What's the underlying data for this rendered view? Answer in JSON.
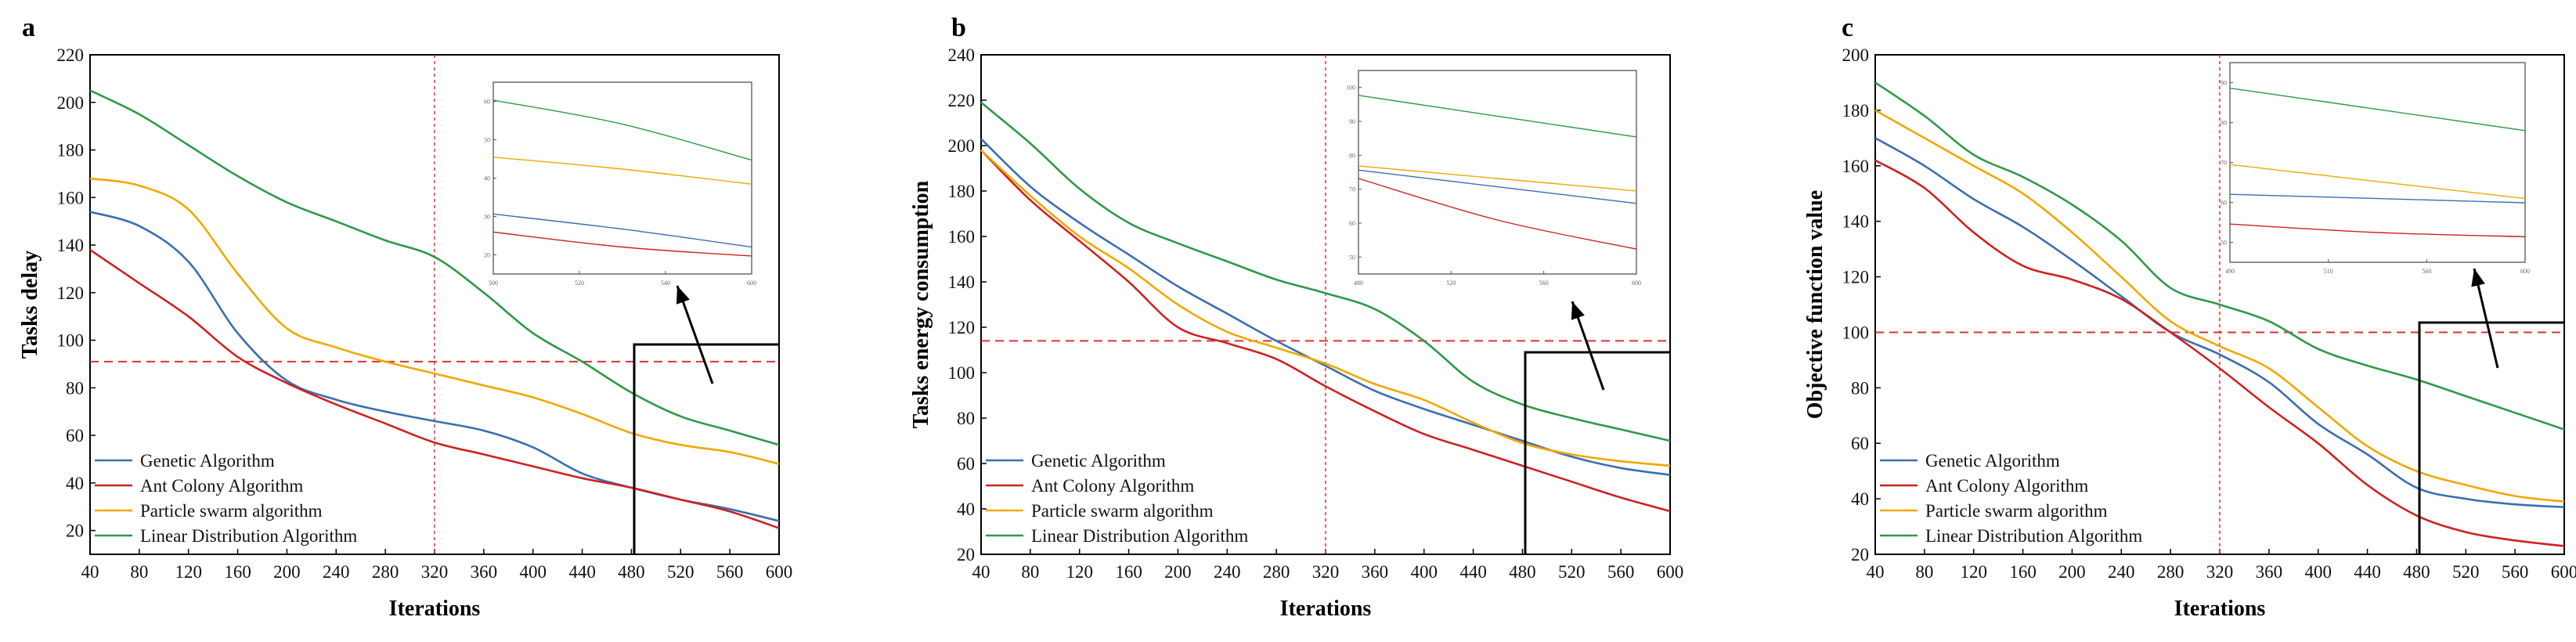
{
  "chart_data": [
    {
      "type": "line",
      "panel": "a",
      "xlabel": "Iterations",
      "ylabel": "Tasks delay",
      "xlim": [
        40,
        600
      ],
      "ylim": [
        10,
        220
      ],
      "xticks": [
        40,
        80,
        120,
        160,
        200,
        240,
        280,
        320,
        360,
        400,
        440,
        480,
        520,
        560,
        600
      ],
      "yticks": [
        20,
        40,
        60,
        80,
        100,
        120,
        140,
        160,
        180,
        200,
        220
      ],
      "x": [
        40,
        80,
        120,
        160,
        200,
        240,
        280,
        320,
        360,
        400,
        440,
        480,
        520,
        560,
        600
      ],
      "series": [
        {
          "name": "Genetic Algorithm",
          "color": "#3a6fb0",
          "values": [
            154,
            148,
            133,
            103,
            83,
            75,
            70,
            66,
            62,
            55,
            44,
            38,
            33,
            29,
            24
          ]
        },
        {
          "name": "Ant Colony Algorithm",
          "color": "#cc2222",
          "values": [
            138,
            124,
            110,
            93,
            82,
            73,
            65,
            57,
            52,
            47,
            42,
            38,
            33,
            28,
            21
          ]
        },
        {
          "name": "Particle swarm algorithm",
          "color": "#f0a800",
          "values": [
            168,
            165,
            155,
            128,
            105,
            97,
            91,
            86,
            81,
            76,
            69,
            61,
            56,
            53,
            48
          ]
        },
        {
          "name": "Linear Distribution Algorithm",
          "color": "#2e9a48",
          "values": [
            205,
            195,
            182,
            169,
            158,
            150,
            142,
            135,
            120,
            103,
            91,
            78,
            68,
            62,
            56
          ]
        }
      ],
      "hline": 91,
      "vline": 320,
      "inset": {
        "xticks": [
          "500",
          "520",
          "540",
          "600"
        ],
        "yticks": [
          "20",
          "30",
          "40",
          "50",
          "60"
        ],
        "series": [
          {
            "color": "#3a6fb0",
            "values": [
              40,
              35,
              29
            ]
          },
          {
            "color": "#cc2222",
            "values": [
              34,
              29,
              26
            ]
          },
          {
            "color": "#f0a800",
            "values": [
              59,
              55,
              50
            ]
          },
          {
            "color": "#2e9a48",
            "values": [
              78,
              70,
              58
            ]
          }
        ]
      }
    },
    {
      "type": "line",
      "panel": "b",
      "xlabel": "Iterations",
      "ylabel": "Tasks energy consumption",
      "xlim": [
        40,
        600
      ],
      "ylim": [
        20,
        240
      ],
      "xticks": [
        40,
        80,
        120,
        160,
        200,
        240,
        280,
        320,
        360,
        400,
        440,
        480,
        520,
        560,
        600
      ],
      "yticks": [
        20,
        40,
        60,
        80,
        100,
        120,
        140,
        160,
        180,
        200,
        220,
        240
      ],
      "x": [
        40,
        80,
        120,
        160,
        200,
        240,
        280,
        320,
        360,
        400,
        440,
        480,
        520,
        560,
        600
      ],
      "series": [
        {
          "name": "Genetic Algorithm",
          "color": "#3a6fb0",
          "values": [
            203,
            182,
            166,
            152,
            138,
            126,
            114,
            103,
            92,
            84,
            77,
            70,
            63,
            58,
            55
          ]
        },
        {
          "name": "Ant Colony Algorithm",
          "color": "#cc2222",
          "values": [
            198,
            176,
            158,
            140,
            120,
            113,
            106,
            94,
            83,
            73,
            66,
            59,
            52,
            45,
            39
          ]
        },
        {
          "name": "Particle swarm algorithm",
          "color": "#f0a800",
          "values": [
            198,
            178,
            160,
            146,
            130,
            118,
            111,
            104,
            95,
            88,
            78,
            69,
            64,
            61,
            59
          ]
        },
        {
          "name": "Linear Distribution Algorithm",
          "color": "#2e9a48",
          "values": [
            219,
            201,
            181,
            166,
            157,
            149,
            141,
            135,
            128,
            114,
            96,
            86,
            80,
            75,
            70
          ]
        }
      ],
      "hline": 114,
      "vline": 320,
      "inset": {
        "xticks": [
          "480",
          "520",
          "560",
          "600"
        ],
        "yticks": [
          "50",
          "60",
          "70",
          "80",
          "90",
          "100"
        ],
        "series": [
          {
            "color": "#3a6fb0",
            "values": [
              72,
              68,
              64
            ]
          },
          {
            "color": "#cc2222",
            "values": [
              70,
              60,
              53
            ]
          },
          {
            "color": "#f0a800",
            "values": [
              73,
              70,
              67
            ]
          },
          {
            "color": "#2e9a48",
            "values": [
              90,
              85,
              80
            ]
          }
        ]
      }
    },
    {
      "type": "line",
      "panel": "c",
      "xlabel": "Iterations",
      "ylabel": "Objective function value",
      "xlim": [
        40,
        600
      ],
      "ylim": [
        20,
        200
      ],
      "xticks": [
        40,
        80,
        120,
        160,
        200,
        240,
        280,
        320,
        360,
        400,
        440,
        480,
        520,
        560,
        600
      ],
      "yticks": [
        20,
        40,
        60,
        80,
        100,
        120,
        140,
        160,
        180,
        200
      ],
      "x": [
        40,
        80,
        120,
        160,
        200,
        240,
        280,
        320,
        360,
        400,
        440,
        480,
        520,
        560,
        600
      ],
      "series": [
        {
          "name": "Genetic Algorithm",
          "color": "#3a6fb0",
          "values": [
            170,
            160,
            148,
            138,
            126,
            113,
            100,
            92,
            82,
            67,
            56,
            44,
            40,
            38,
            37
          ]
        },
        {
          "name": "Ant Colony Algorithm",
          "color": "#cc2222",
          "values": [
            162,
            152,
            136,
            124,
            119,
            112,
            100,
            87,
            73,
            60,
            45,
            34,
            28,
            25,
            23
          ]
        },
        {
          "name": "Particle swarm algorithm",
          "color": "#f0a800",
          "values": [
            180,
            170,
            160,
            150,
            136,
            120,
            104,
            95,
            87,
            73,
            59,
            50,
            45,
            41,
            39
          ]
        },
        {
          "name": "Linear Distribution Algorithm",
          "color": "#2e9a48",
          "values": [
            190,
            178,
            164,
            156,
            146,
            133,
            116,
            110,
            104,
            94,
            88,
            83,
            77,
            71,
            65
          ]
        }
      ],
      "hline": 100,
      "vline": 320,
      "inset": {
        "xticks": [
          "490",
          "510",
          "560",
          "600"
        ],
        "yticks": [
          "50",
          "60",
          "70",
          "80",
          "90"
        ],
        "series": [
          {
            "color": "#3a6fb0",
            "values": [
              65,
              64,
              63
            ]
          },
          {
            "color": "#cc2222",
            "values": [
              58,
              56,
              55
            ]
          },
          {
            "color": "#f0a800",
            "values": [
              72,
              68,
              64
            ]
          },
          {
            "color": "#2e9a48",
            "values": [
              90,
              85,
              80
            ]
          }
        ]
      }
    }
  ],
  "colors": {
    "genetic": "#3a6fb0",
    "ant": "#cc2222",
    "pso": "#f0a800",
    "linear": "#2e9a48",
    "ref_line": "#e03030"
  }
}
